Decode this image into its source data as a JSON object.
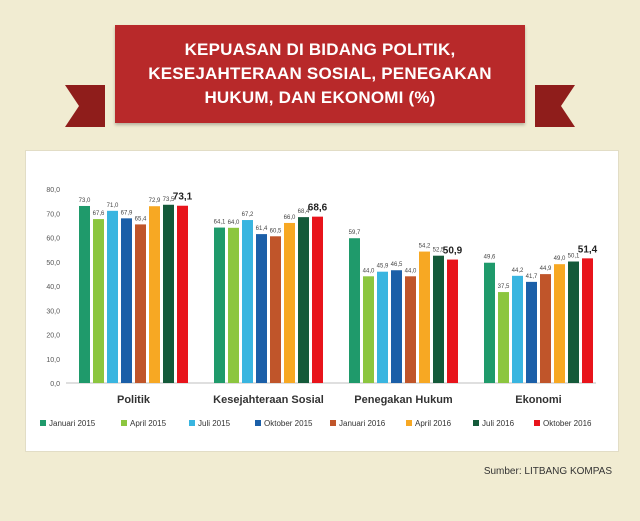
{
  "banner": {
    "title": "KEPUASAN DI BIDANG POLITIK,\nKESEJAHTERAAN SOSIAL, PENEGAKAN\nHUKUM, DAN EKONOMI (%)"
  },
  "source": "Sumber: LITBANG KOMPAS",
  "colors": {
    "background": "#f1ecd2",
    "banner": "#b8292a"
  },
  "chart_data": {
    "type": "bar",
    "title": "KEPUASAN DI BIDANG POLITIK, KESEJAHTERAAN SOSIAL, PENEGAKAN HUKUM, DAN EKONOMI (%)",
    "categories": [
      "Politik",
      "Kesejahteraan Sosial",
      "Penegakan Hukum",
      "Ekonomi"
    ],
    "ylim": [
      0,
      80
    ],
    "yticks": [
      "0,0",
      "10,0",
      "20,0",
      "30,0",
      "40,0",
      "50,0",
      "60,0",
      "70,0",
      "80,0"
    ],
    "grid": false,
    "legend_position": "bottom",
    "series": [
      {
        "name": "Januari 2015",
        "color": "#1f9a6b",
        "values": [
          73.0,
          64.1,
          59.7,
          49.6
        ],
        "labels": [
          "73,0",
          "64,1",
          "59,7",
          "49,6"
        ]
      },
      {
        "name": "April 2015",
        "color": "#8cc63f",
        "values": [
          67.6,
          64.0,
          44.0,
          37.5
        ],
        "labels": [
          "67,6",
          "64,0",
          "44,0",
          "37,5"
        ]
      },
      {
        "name": "Juli 2015",
        "color": "#39b5e0",
        "values": [
          71.0,
          67.2,
          45.9,
          44.2
        ],
        "labels": [
          "71,0",
          "67,2",
          "45,9",
          "44,2"
        ]
      },
      {
        "name": "Oktober 2015",
        "color": "#1b5fa8",
        "values": [
          67.9,
          61.4,
          46.5,
          41.7
        ],
        "labels": [
          "67,9",
          "61,4",
          "46,5",
          "41,7"
        ]
      },
      {
        "name": "Januari 2016",
        "color": "#c0552a",
        "values": [
          65.4,
          60.5,
          44.0,
          44.9
        ],
        "labels": [
          "65,4",
          "60,5",
          "44,0",
          "44,9"
        ]
      },
      {
        "name": "April 2016",
        "color": "#f7a823",
        "values": [
          72.9,
          66.0,
          54.2,
          49.0
        ],
        "labels": [
          "72,9",
          "66,0",
          "54,2",
          "49,0"
        ]
      },
      {
        "name": "Juli 2016",
        "color": "#145a3a",
        "values": [
          73.5,
          68.4,
          52.5,
          50.1
        ],
        "labels": [
          "73,5",
          "68,4",
          "52,5",
          "50,1"
        ]
      },
      {
        "name": "Oktober 2016",
        "color": "#e8141b",
        "values": [
          73.1,
          68.6,
          50.9,
          51.4
        ],
        "labels": [
          "73,1",
          "68,6",
          "50,9",
          "51,4"
        ]
      }
    ]
  }
}
